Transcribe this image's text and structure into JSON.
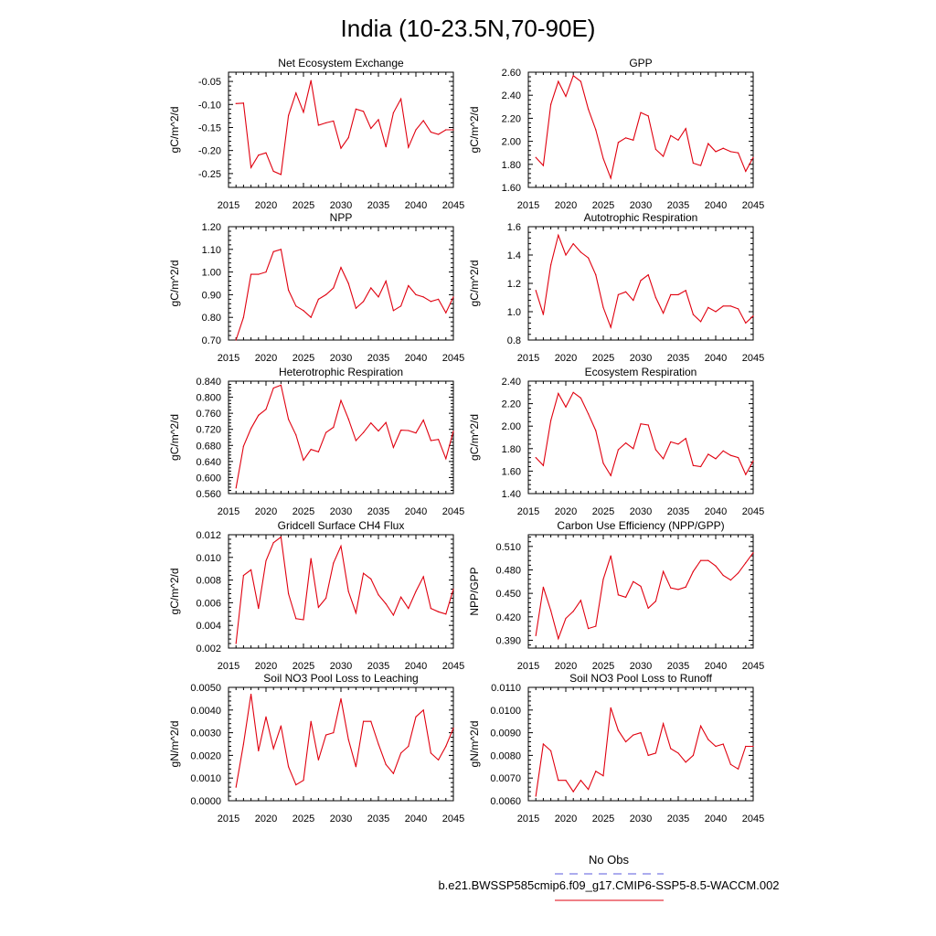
{
  "figure": {
    "title": "India (10-23.5N,70-90E)",
    "legend": {
      "obs_label": "No Obs",
      "obs_color": "#5a5adc",
      "model_label": "b.e21.BWSSP585cmip6.f09_g17.CMIP6-SSP5-8.5-WACCM.002",
      "model_color": "#e0000f"
    }
  },
  "chart_data": [
    {
      "type": "line",
      "title": "Net Ecosystem Exchange",
      "xlabel": "",
      "ylabel": "gC/m^2/d",
      "xlim": [
        2015,
        2045
      ],
      "ylim": [
        -0.28,
        -0.03
      ],
      "xticks": [
        "2015",
        "2020",
        "2025",
        "2030",
        "2035",
        "2040",
        "2045"
      ],
      "yticks": [
        "-0.05",
        "-0.10",
        "-0.15",
        "-0.20",
        "-0.25"
      ],
      "x": [
        2016,
        2017,
        2018,
        2019,
        2020,
        2021,
        2022,
        2023,
        2024,
        2025,
        2026,
        2027,
        2028,
        2029,
        2030,
        2031,
        2032,
        2033,
        2034,
        2035,
        2036,
        2037,
        2038,
        2039,
        2040,
        2041,
        2042,
        2043,
        2044,
        2045
      ],
      "series": [
        {
          "values": [
            -0.098,
            -0.097,
            -0.237,
            -0.21,
            -0.205,
            -0.245,
            -0.252,
            -0.124,
            -0.075,
            -0.117,
            -0.048,
            -0.145,
            -0.14,
            -0.136,
            -0.195,
            -0.172,
            -0.11,
            -0.115,
            -0.152,
            -0.133,
            -0.192,
            -0.118,
            -0.088,
            -0.193,
            -0.155,
            -0.135,
            -0.16,
            -0.165,
            -0.155,
            -0.155
          ],
          "color": "#e0000f"
        }
      ]
    },
    {
      "type": "line",
      "title": "GPP",
      "xlabel": "",
      "ylabel": "gC/m^2/d",
      "xlim": [
        2015,
        2045
      ],
      "ylim": [
        1.6,
        2.6
      ],
      "xticks": [
        "2015",
        "2020",
        "2025",
        "2030",
        "2035",
        "2040",
        "2045"
      ],
      "yticks": [
        "2.60",
        "2.40",
        "2.20",
        "2.00",
        "1.80",
        "1.60"
      ],
      "x": [
        2016,
        2017,
        2018,
        2019,
        2020,
        2021,
        2022,
        2023,
        2024,
        2025,
        2026,
        2027,
        2028,
        2029,
        2030,
        2031,
        2032,
        2033,
        2034,
        2035,
        2036,
        2037,
        2038,
        2039,
        2040,
        2041,
        2042,
        2043,
        2044,
        2045
      ],
      "series": [
        {
          "values": [
            1.86,
            1.79,
            2.32,
            2.52,
            2.39,
            2.57,
            2.52,
            2.28,
            2.1,
            1.85,
            1.68,
            1.99,
            2.03,
            2.01,
            2.25,
            2.22,
            1.93,
            1.87,
            2.05,
            2.01,
            2.11,
            1.81,
            1.79,
            1.98,
            1.91,
            1.94,
            1.91,
            1.9,
            1.74,
            1.86
          ],
          "color": "#e0000f"
        }
      ]
    },
    {
      "type": "line",
      "title": "NPP",
      "xlabel": "",
      "ylabel": "gC/m^2/d",
      "xlim": [
        2015,
        2045
      ],
      "ylim": [
        0.7,
        1.2
      ],
      "xticks": [
        "2015",
        "2020",
        "2025",
        "2030",
        "2035",
        "2040",
        "2045"
      ],
      "yticks": [
        "1.20",
        "1.10",
        "1.00",
        "0.90",
        "0.80",
        "0.70"
      ],
      "x": [
        2016,
        2017,
        2018,
        2019,
        2020,
        2021,
        2022,
        2023,
        2024,
        2025,
        2026,
        2027,
        2028,
        2029,
        2030,
        2031,
        2032,
        2033,
        2034,
        2035,
        2036,
        2037,
        2038,
        2039,
        2040,
        2041,
        2042,
        2043,
        2044,
        2045
      ],
      "series": [
        {
          "values": [
            0.7,
            0.8,
            0.99,
            0.99,
            1.0,
            1.09,
            1.1,
            0.92,
            0.85,
            0.83,
            0.8,
            0.88,
            0.9,
            0.93,
            1.02,
            0.95,
            0.84,
            0.87,
            0.93,
            0.89,
            0.96,
            0.83,
            0.85,
            0.94,
            0.9,
            0.89,
            0.87,
            0.88,
            0.82,
            0.89
          ],
          "color": "#e0000f"
        }
      ]
    },
    {
      "type": "line",
      "title": "Autotrophic Respiration",
      "xlabel": "",
      "ylabel": "gC/m^2/d",
      "xlim": [
        2015,
        2045
      ],
      "ylim": [
        0.8,
        1.6
      ],
      "xticks": [
        "2015",
        "2020",
        "2025",
        "2030",
        "2035",
        "2040",
        "2045"
      ],
      "yticks": [
        "1.6",
        "1.4",
        "1.2",
        "1.0",
        "0.8"
      ],
      "x": [
        2016,
        2017,
        2018,
        2019,
        2020,
        2021,
        2022,
        2023,
        2024,
        2025,
        2026,
        2027,
        2028,
        2029,
        2030,
        2031,
        2032,
        2033,
        2034,
        2035,
        2036,
        2037,
        2038,
        2039,
        2040,
        2041,
        2042,
        2043,
        2044,
        2045
      ],
      "series": [
        {
          "values": [
            1.15,
            0.98,
            1.33,
            1.54,
            1.4,
            1.48,
            1.42,
            1.38,
            1.26,
            1.03,
            0.89,
            1.12,
            1.14,
            1.08,
            1.22,
            1.26,
            1.1,
            0.99,
            1.12,
            1.12,
            1.15,
            0.98,
            0.93,
            1.03,
            1.0,
            1.04,
            1.04,
            1.02,
            0.92,
            0.97
          ],
          "color": "#e0000f"
        }
      ]
    },
    {
      "type": "line",
      "title": "Heterotrophic Respiration",
      "xlabel": "",
      "ylabel": "gC/m^2/d",
      "xlim": [
        2015,
        2045
      ],
      "ylim": [
        0.56,
        0.84
      ],
      "xticks": [
        "2015",
        "2020",
        "2025",
        "2030",
        "2035",
        "2040",
        "2045"
      ],
      "yticks": [
        "0.840",
        "0.800",
        "0.760",
        "0.720",
        "0.680",
        "0.640",
        "0.600",
        "0.560"
      ],
      "x": [
        2016,
        2017,
        2018,
        2019,
        2020,
        2021,
        2022,
        2023,
        2024,
        2025,
        2026,
        2027,
        2028,
        2029,
        2030,
        2031,
        2032,
        2033,
        2034,
        2035,
        2036,
        2037,
        2038,
        2039,
        2040,
        2041,
        2042,
        2043,
        2044,
        2045
      ],
      "series": [
        {
          "values": [
            0.574,
            0.678,
            0.722,
            0.755,
            0.77,
            0.823,
            0.83,
            0.745,
            0.706,
            0.643,
            0.67,
            0.664,
            0.712,
            0.725,
            0.792,
            0.746,
            0.692,
            0.712,
            0.736,
            0.716,
            0.737,
            0.675,
            0.718,
            0.717,
            0.711,
            0.743,
            0.692,
            0.695,
            0.647,
            0.715
          ],
          "color": "#e0000f"
        }
      ]
    },
    {
      "type": "line",
      "title": "Ecosystem Respiration",
      "xlabel": "",
      "ylabel": "gC/m^2/d",
      "xlim": [
        2015,
        2045
      ],
      "ylim": [
        1.4,
        2.4
      ],
      "xticks": [
        "2015",
        "2020",
        "2025",
        "2030",
        "2035",
        "2040",
        "2045"
      ],
      "yticks": [
        "2.40",
        "2.20",
        "2.00",
        "1.80",
        "1.60",
        "1.40"
      ],
      "x": [
        2016,
        2017,
        2018,
        2019,
        2020,
        2021,
        2022,
        2023,
        2024,
        2025,
        2026,
        2027,
        2028,
        2029,
        2030,
        2031,
        2032,
        2033,
        2034,
        2035,
        2036,
        2037,
        2038,
        2039,
        2040,
        2041,
        2042,
        2043,
        2044,
        2045
      ],
      "series": [
        {
          "values": [
            1.72,
            1.65,
            2.05,
            2.29,
            2.17,
            2.3,
            2.25,
            2.11,
            1.96,
            1.67,
            1.56,
            1.79,
            1.85,
            1.8,
            2.02,
            2.01,
            1.79,
            1.71,
            1.86,
            1.84,
            1.89,
            1.65,
            1.64,
            1.75,
            1.71,
            1.78,
            1.74,
            1.72,
            1.57,
            1.69
          ],
          "color": "#e0000f"
        }
      ]
    },
    {
      "type": "line",
      "title": "Gridcell Surface CH4 Flux",
      "xlabel": "",
      "ylabel": "gC/m^2/d",
      "xlim": [
        2015,
        2045
      ],
      "ylim": [
        0.002,
        0.012
      ],
      "xticks": [
        "2015",
        "2020",
        "2025",
        "2030",
        "2035",
        "2040",
        "2045"
      ],
      "yticks": [
        "0.012",
        "0.010",
        "0.008",
        "0.006",
        "0.004",
        "0.002"
      ],
      "x": [
        2016,
        2017,
        2018,
        2019,
        2020,
        2021,
        2022,
        2023,
        2024,
        2025,
        2026,
        2027,
        2028,
        2029,
        2030,
        2031,
        2032,
        2033,
        2034,
        2035,
        2036,
        2037,
        2038,
        2039,
        2040,
        2041,
        2042,
        2043,
        2044,
        2045
      ],
      "series": [
        {
          "values": [
            0.0024,
            0.0084,
            0.0089,
            0.0055,
            0.0097,
            0.0113,
            0.0118,
            0.0068,
            0.0046,
            0.0045,
            0.0099,
            0.0056,
            0.0064,
            0.0095,
            0.011,
            0.007,
            0.0051,
            0.0086,
            0.0081,
            0.0067,
            0.0059,
            0.0049,
            0.0065,
            0.0055,
            0.007,
            0.0083,
            0.0055,
            0.0052,
            0.005,
            0.0072
          ],
          "color": "#e0000f"
        }
      ]
    },
    {
      "type": "line",
      "title": "Carbon Use Efficiency (NPP/GPP)",
      "xlabel": "",
      "ylabel": "NPP/GPP",
      "xlim": [
        2015,
        2045
      ],
      "ylim": [
        0.38,
        0.525
      ],
      "xticks": [
        "2015",
        "2020",
        "2025",
        "2030",
        "2035",
        "2040",
        "2045"
      ],
      "yticks": [
        "0.510",
        "0.480",
        "0.450",
        "0.420",
        "0.390"
      ],
      "x": [
        2016,
        2017,
        2018,
        2019,
        2020,
        2021,
        2022,
        2023,
        2024,
        2025,
        2026,
        2027,
        2028,
        2029,
        2030,
        2031,
        2032,
        2033,
        2034,
        2035,
        2036,
        2037,
        2038,
        2039,
        2040,
        2041,
        2042,
        2043,
        2044,
        2045
      ],
      "series": [
        {
          "values": [
            0.396,
            0.458,
            0.428,
            0.392,
            0.418,
            0.427,
            0.441,
            0.405,
            0.408,
            0.468,
            0.498,
            0.448,
            0.445,
            0.465,
            0.459,
            0.431,
            0.44,
            0.478,
            0.457,
            0.455,
            0.458,
            0.478,
            0.492,
            0.492,
            0.485,
            0.473,
            0.467,
            0.476,
            0.489,
            0.502
          ],
          "color": "#e0000f"
        }
      ]
    },
    {
      "type": "line",
      "title": "Soil NO3 Pool Loss to Leaching",
      "xlabel": "",
      "ylabel": "gN/m^2/d",
      "xlim": [
        2015,
        2045
      ],
      "ylim": [
        0.0,
        0.005
      ],
      "xticks": [
        "2015",
        "2020",
        "2025",
        "2030",
        "2035",
        "2040",
        "2045"
      ],
      "yticks": [
        "0.0050",
        "0.0040",
        "0.0030",
        "0.0020",
        "0.0010",
        "0.0000"
      ],
      "x": [
        2016,
        2017,
        2018,
        2019,
        2020,
        2021,
        2022,
        2023,
        2024,
        2025,
        2026,
        2027,
        2028,
        2029,
        2030,
        2031,
        2032,
        2033,
        2034,
        2035,
        2036,
        2037,
        2038,
        2039,
        2040,
        2041,
        2042,
        2043,
        2044,
        2045
      ],
      "series": [
        {
          "values": [
            0.0006,
            0.0025,
            0.0047,
            0.0022,
            0.0037,
            0.0023,
            0.0033,
            0.0015,
            0.0007,
            0.0009,
            0.0035,
            0.0018,
            0.0029,
            0.003,
            0.0045,
            0.0027,
            0.0015,
            0.0035,
            0.0035,
            0.0025,
            0.0016,
            0.0012,
            0.0021,
            0.0024,
            0.0037,
            0.004,
            0.0021,
            0.0018,
            0.0024,
            0.0032
          ],
          "color": "#e0000f"
        }
      ]
    },
    {
      "type": "line",
      "title": "Soil NO3 Pool Loss to Runoff",
      "xlabel": "",
      "ylabel": "gN/m^2/d",
      "xlim": [
        2015,
        2045
      ],
      "ylim": [
        0.006,
        0.011
      ],
      "xticks": [
        "2015",
        "2020",
        "2025",
        "2030",
        "2035",
        "2040",
        "2045"
      ],
      "yticks": [
        "0.0110",
        "0.0100",
        "0.0090",
        "0.0080",
        "0.0070",
        "0.0060"
      ],
      "x": [
        2016,
        2017,
        2018,
        2019,
        2020,
        2021,
        2022,
        2023,
        2024,
        2025,
        2026,
        2027,
        2028,
        2029,
        2030,
        2031,
        2032,
        2033,
        2034,
        2035,
        2036,
        2037,
        2038,
        2039,
        2040,
        2041,
        2042,
        2043,
        2044,
        2045
      ],
      "series": [
        {
          "values": [
            0.0062,
            0.0085,
            0.0082,
            0.0069,
            0.0069,
            0.0064,
            0.0069,
            0.0065,
            0.0073,
            0.0071,
            0.0101,
            0.0091,
            0.0086,
            0.0089,
            0.009,
            0.008,
            0.0081,
            0.0094,
            0.0083,
            0.0081,
            0.0077,
            0.008,
            0.0093,
            0.0087,
            0.0084,
            0.0085,
            0.0076,
            0.0074,
            0.0084,
            0.0084
          ],
          "color": "#e0000f"
        }
      ]
    }
  ]
}
